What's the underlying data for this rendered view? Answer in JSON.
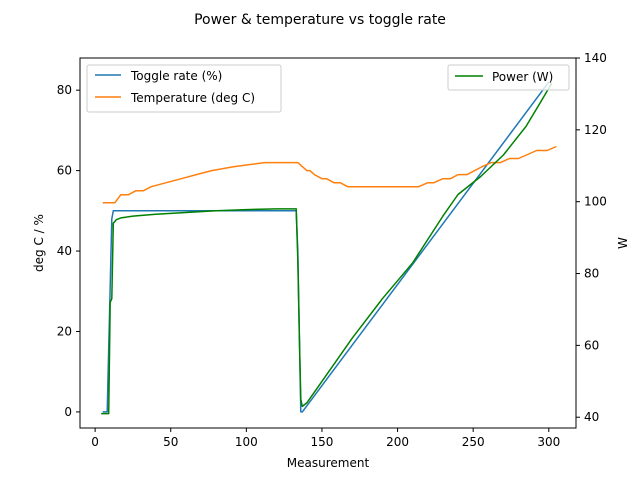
{
  "chart_data": {
    "type": "line",
    "title": "Power & temperature vs toggle rate",
    "xlabel": "Measurement",
    "ylabel_left": "deg C / %",
    "ylabel_right": "W",
    "xlim": [
      -10,
      318
    ],
    "ylim_left": [
      -4,
      88
    ],
    "ylim_right": [
      37,
      140
    ],
    "xticks": [
      0,
      50,
      100,
      150,
      200,
      250,
      300
    ],
    "yticks_left": [
      0,
      20,
      40,
      60,
      80
    ],
    "yticks_right": [
      40,
      60,
      80,
      100,
      120,
      140
    ],
    "grid": false,
    "legend_left": {
      "placement": "upper left",
      "entries": [
        "Toggle rate (%)",
        "Temperature (deg C)"
      ]
    },
    "legend_right": {
      "placement": "upper right",
      "entries": [
        "Power (W)"
      ]
    },
    "colors": {
      "toggle": "#1f77b4",
      "temperature": "#ff7f0e",
      "power": "#008000"
    },
    "series": [
      {
        "name": "Toggle rate (%)",
        "axis": "left",
        "color": "#1f77b4",
        "x": [
          5,
          8,
          11,
          12,
          133,
          134,
          136,
          137,
          300
        ],
        "y": [
          0,
          0,
          48,
          50,
          50,
          40,
          0,
          0,
          82
        ]
      },
      {
        "name": "Temperature (deg C)",
        "axis": "left",
        "color": "#ff7f0e",
        "x": [
          5,
          13,
          15,
          17,
          22,
          27,
          32,
          37,
          47,
          57,
          67,
          77,
          92,
          112,
          122,
          134,
          137,
          140,
          142,
          145,
          150,
          153,
          158,
          162,
          167,
          172,
          214,
          220,
          224,
          230,
          235,
          240,
          246,
          251,
          256,
          262,
          268,
          274,
          280,
          286,
          292,
          299,
          305
        ],
        "y": [
          52,
          52,
          53,
          54,
          54,
          55,
          55,
          56,
          57,
          58,
          59,
          60,
          61,
          62,
          62,
          62,
          61,
          60,
          60,
          59,
          58,
          58,
          57,
          57,
          56,
          56,
          56,
          57,
          57,
          58,
          58,
          59,
          59,
          60,
          61,
          62,
          62,
          63,
          63,
          64,
          65,
          65,
          66
        ]
      },
      {
        "name": "Power (W)",
        "axis": "right",
        "color": "#008000",
        "x": [
          4,
          9,
          10,
          11,
          12,
          14,
          17,
          25,
          40,
          60,
          80,
          100,
          120,
          133,
          134,
          135,
          136,
          137,
          140,
          150,
          170,
          190,
          210,
          230,
          240,
          255,
          270,
          285,
          295,
          302
        ],
        "y": [
          41,
          41,
          72,
          73,
          94,
          95,
          95.5,
          96,
          96.5,
          97,
          97.5,
          97.8,
          98,
          98,
          84,
          63,
          45,
          43,
          44,
          50,
          62,
          73,
          83,
          96,
          102,
          107,
          113,
          121,
          128,
          133
        ]
      }
    ]
  }
}
